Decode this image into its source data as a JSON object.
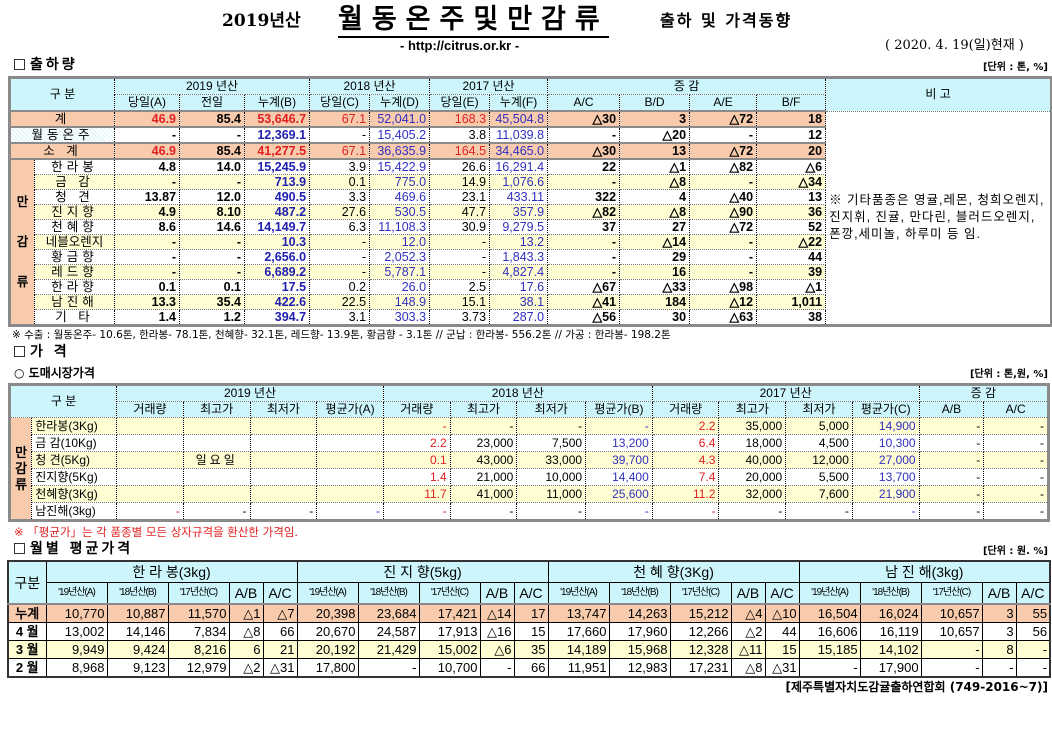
{
  "header": {
    "year": "2019년산",
    "title": "월동온주및만감류",
    "subtitle": "출하 및 가격동향",
    "url": "- http://citrus.or.kr -",
    "date": "( 2020. 4. 19(일)현재 )"
  },
  "shipment": {
    "section": "출하량",
    "unit": "[단위 : 톤, %]",
    "col_label": "구  분",
    "groups": [
      "2019 년산",
      "2018 년산",
      "2017 년산",
      "증   감"
    ],
    "note_header": "비 고",
    "cols": [
      "당일(A)",
      "전일",
      "누계(B)",
      "당일(C)",
      "누계(D)",
      "당일(E)",
      "누계(F)",
      "A/C",
      "B/D",
      "A/E",
      "B/F"
    ],
    "group_label": "만 감 류",
    "rows": [
      {
        "name": "계",
        "v": [
          "46.9",
          "85.4",
          "53,646.7",
          "67.1",
          "52,041.0",
          "168.3",
          "45,504.8",
          "△30",
          "3",
          "△72",
          "18"
        ]
      },
      {
        "name": "월동온주",
        "v": [
          "-",
          "-",
          "12,369.1",
          "-",
          "15,405.2",
          "3.8",
          "11,039.8",
          "-",
          "△20",
          "-",
          "12"
        ]
      },
      {
        "name": "소  계",
        "v": [
          "46.9",
          "85.4",
          "41,277.5",
          "67.1",
          "36,635.9",
          "164.5",
          "34,465.0",
          "△30",
          "13",
          "△72",
          "20"
        ]
      },
      {
        "name": "한라봉",
        "v": [
          "4.8",
          "14.0",
          "15,245.9",
          "3.9",
          "15,422.9",
          "26.6",
          "16,291.4",
          "22",
          "△1",
          "△82",
          "△6"
        ]
      },
      {
        "name": "금  감",
        "v": [
          "-",
          "-",
          "713.9",
          "0.1",
          "775.0",
          "14.9",
          "1,076.6",
          "-",
          "△8",
          "-",
          "△34"
        ]
      },
      {
        "name": "청  견",
        "v": [
          "13.87",
          "12.0",
          "490.5",
          "3.3",
          "469.6",
          "23.1",
          "433.11",
          "322",
          "4",
          "△40",
          "13"
        ]
      },
      {
        "name": "진지향",
        "v": [
          "4.9",
          "8.10",
          "487.2",
          "27.6",
          "530.5",
          "47.7",
          "357.9",
          "△82",
          "△8",
          "△90",
          "36"
        ]
      },
      {
        "name": "천혜향",
        "v": [
          "8.6",
          "14.6",
          "14,149.7",
          "6.3",
          "11,108.3",
          "30.9",
          "9,279.5",
          "37",
          "27",
          "△72",
          "52"
        ]
      },
      {
        "name": "네블오렌지",
        "v": [
          "-",
          "-",
          "10.3",
          "-",
          "12.0",
          "-",
          "13.2",
          "-",
          "△14",
          "-",
          "△22"
        ]
      },
      {
        "name": "황금향",
        "v": [
          "-",
          "-",
          "2,656.0",
          "-",
          "2,052.3",
          "-",
          "1,843.3",
          "-",
          "29",
          "-",
          "44"
        ]
      },
      {
        "name": "레드향",
        "v": [
          "-",
          "-",
          "6,689.2",
          "-",
          "5,787.1",
          "-",
          "4,827.4",
          "-",
          "16",
          "-",
          "39"
        ]
      },
      {
        "name": "한라향",
        "v": [
          "0.1",
          "0.1",
          "17.5",
          "0.2",
          "26.0",
          "2.5",
          "17.6",
          "△67",
          "△33",
          "△98",
          "△1"
        ]
      },
      {
        "name": "남진해",
        "v": [
          "13.3",
          "35.4",
          "422.6",
          "22.5",
          "148.9",
          "15.1",
          "38.1",
          "△41",
          "184",
          "△12",
          "1,011"
        ]
      },
      {
        "name": "기  타",
        "v": [
          "1.4",
          "1.2",
          "394.7",
          "3.1",
          "303.3",
          "3.73",
          "287.0",
          "△56",
          "30",
          "△63",
          "38"
        ]
      }
    ],
    "remark": "※ 기타품종은 영귤,레몬, 청희오렌지, 진지휘, 진귤, 만다린, 블러드오렌지, 폰깡,세미놀, 하루미 등 임.",
    "footnote": "※ 수출 : 월동온주- 10.6톤, 한라봉- 78.1톤, 천혜향- 32.1톤, 레드향- 13.9톤, 황금향 - 3.1톤  // 군납 : 한라봉- 556.2톤 // 가공 : 한라봉- 198.2톤"
  },
  "price": {
    "section": "가    격",
    "subsection": "○ 도매시장가격",
    "unit": "[단위 : 톤,원, %]",
    "col_label": "구  분",
    "groups": [
      "2019 년산",
      "2018 년산",
      "2017 년산",
      "증   감"
    ],
    "cols": [
      "거래량",
      "최고가",
      "최저가",
      "평균가(A)",
      "거래량",
      "최고가",
      "최저가",
      "평균가(B)",
      "거래량",
      "최고가",
      "최저가",
      "평균가(C)",
      "A/B",
      "A/C"
    ],
    "group_label": "만 감 류",
    "rows": [
      {
        "name": "한라봉(3Kg)",
        "v": [
          "",
          "",
          "",
          "",
          "-",
          "-",
          "-",
          "-",
          "2.2",
          "35,000",
          "5,000",
          "14,900",
          "-",
          "-"
        ]
      },
      {
        "name": "금  감(10Kg)",
        "v": [
          "",
          "",
          "",
          "",
          "2.2",
          "23,000",
          "7,500",
          "13,200",
          "6.4",
          "18,000",
          "4,500",
          "10,300",
          "-",
          "-"
        ]
      },
      {
        "name": "청   견(5Kg)",
        "v": [
          "",
          "일요일",
          "",
          "",
          "0.1",
          "43,000",
          "33,000",
          "39,700",
          "4.3",
          "40,000",
          "12,000",
          "27,000",
          "-",
          "-"
        ]
      },
      {
        "name": "진지향(5Kg)",
        "v": [
          "",
          "",
          "",
          "",
          "1.4",
          "21,000",
          "10,000",
          "14,400",
          "7.4",
          "20,000",
          "5,500",
          "13,700",
          "-",
          "-"
        ]
      },
      {
        "name": "천혜향(3Kg)",
        "v": [
          "",
          "",
          "",
          "",
          "11.7",
          "41,000",
          "11,000",
          "25,600",
          "11.2",
          "32,000",
          "7,600",
          "21,900",
          "-",
          "-"
        ]
      },
      {
        "name": "남진해(3kg)",
        "v": [
          "-",
          "-",
          "-",
          "-",
          "-",
          "-",
          "-",
          "-",
          "-",
          "-",
          "-",
          "-",
          "-",
          "-"
        ]
      }
    ],
    "footnote": "※ 「평균가」는 각 품종별 모든 상자규격을 환산한 가격임."
  },
  "monthly": {
    "section": "월별 평균가격",
    "unit": "[단위 : 원. %]",
    "col_label": "구분",
    "groups": [
      "한 라 봉(3kg)",
      "진 지 향(5kg)",
      "천 혜 향(3Kg)",
      "남 진 해(3kg)"
    ],
    "cols": [
      "'19년산(A)",
      "'18년산(B)",
      "'17년산(C)",
      "A/B",
      "A/C"
    ],
    "rows": [
      {
        "name": "누계",
        "v": [
          "10,770",
          "10,887",
          "11,570",
          "△1",
          "△7",
          "20,398",
          "23,684",
          "17,421",
          "△14",
          "17",
          "13,747",
          "14,263",
          "15,212",
          "△4",
          "△10",
          "16,504",
          "16,024",
          "10,657",
          "3",
          "55"
        ]
      },
      {
        "name": "4 월",
        "v": [
          "13,002",
          "14,146",
          "7,834",
          "△8",
          "66",
          "20,670",
          "24,587",
          "17,913",
          "△16",
          "15",
          "17,660",
          "17,960",
          "12,266",
          "△2",
          "44",
          "16,606",
          "16,119",
          "10,657",
          "3",
          "56"
        ]
      },
      {
        "name": "3 월",
        "v": [
          "9,949",
          "9,424",
          "8,216",
          "6",
          "21",
          "20,192",
          "21,429",
          "15,002",
          "△6",
          "35",
          "14,189",
          "15,968",
          "12,328",
          "△11",
          "15",
          "15,185",
          "14,102",
          "-",
          "8",
          "-"
        ]
      },
      {
        "name": "2 월",
        "v": [
          "8,968",
          "9,123",
          "12,979",
          "△2",
          "△31",
          "17,800",
          "-",
          "10,700",
          "-",
          "66",
          "11,951",
          "12,983",
          "17,231",
          "△8",
          "△31",
          "-",
          "17,900",
          "-",
          "-",
          "-"
        ]
      }
    ],
    "source": "[제주특별자치도감귤출하연합회 (749-2016~7)]"
  }
}
